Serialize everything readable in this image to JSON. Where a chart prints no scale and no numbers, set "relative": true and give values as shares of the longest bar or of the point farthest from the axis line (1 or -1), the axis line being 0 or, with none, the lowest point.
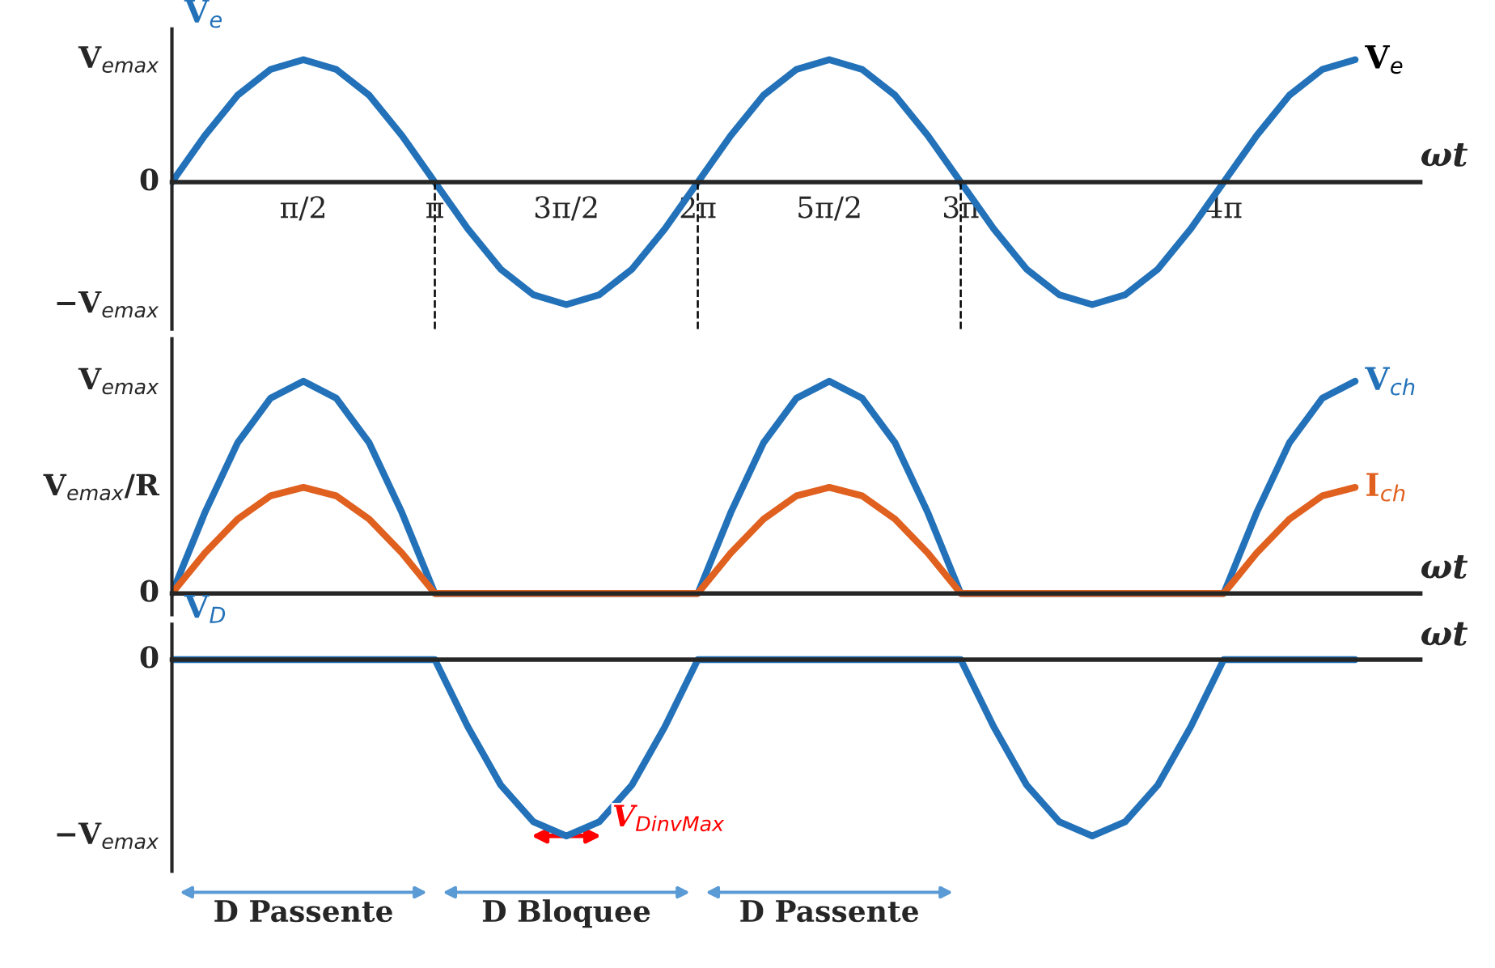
{
  "chart_data": [
    {
      "type": "line",
      "relative": true,
      "ylabel": "V$_{e}$",
      "xlabel": "ωt",
      "categories": [
        null,
        null,
        null,
        null,
        "π/2",
        null,
        null,
        null,
        "π",
        null,
        null,
        null,
        "3π/2",
        null,
        null,
        null,
        "2π",
        null,
        null,
        null,
        "5π/2",
        null,
        null,
        null,
        "3π",
        null,
        null,
        null,
        null,
        null,
        null,
        null,
        "4π",
        null,
        null,
        null,
        null
      ],
      "series": [
        {
          "name": "V$_{e}$",
          "color": "#2372b9",
          "values": [
            0,
            0.38,
            0.71,
            0.92,
            1,
            0.92,
            0.71,
            0.38,
            0,
            -0.38,
            -0.71,
            -0.92,
            -1,
            -0.92,
            -0.71,
            -0.38,
            0,
            0.38,
            0.71,
            0.92,
            1,
            0.92,
            0.71,
            0.38,
            0,
            -0.38,
            -0.71,
            -0.92,
            -1,
            -0.92,
            -0.71,
            -0.38,
            0,
            0.38,
            0.71,
            0.92,
            1
          ]
        }
      ],
      "annotations": [
        "V$_{emax}$",
        "0",
        "−V$_{emax}$"
      ],
      "ref_lines": [
        {
          "axis": "x",
          "value": "π",
          "color": "#000000",
          "line_style": "dashed"
        },
        {
          "axis": "x",
          "value": "2π",
          "color": "#000000",
          "line_style": "dashed"
        },
        {
          "axis": "x",
          "value": "3π",
          "color": "#000000",
          "line_style": "dashed"
        }
      ],
      "legend": false,
      "marker": "none",
      "line_style": "solid"
    },
    {
      "type": "line",
      "relative": true,
      "xlabel": "ωt",
      "categories": [
        null,
        null,
        null,
        null,
        null,
        null,
        null,
        null,
        null,
        null,
        null,
        null,
        null,
        null,
        null,
        null,
        null,
        null,
        null,
        null,
        null,
        null,
        null,
        null,
        null,
        null,
        null,
        null,
        null,
        null,
        null,
        null,
        null,
        null,
        null,
        null,
        null
      ],
      "series": [
        {
          "name": "V$_{ch}$",
          "color": "#2372b9",
          "values": [
            0,
            0.38,
            0.71,
            0.92,
            1,
            0.92,
            0.71,
            0.38,
            0,
            0,
            0,
            0,
            0,
            0,
            0,
            0,
            0,
            0.38,
            0.71,
            0.92,
            1,
            0.92,
            0.71,
            0.38,
            0,
            0,
            0,
            0,
            0,
            0,
            0,
            0,
            0,
            0.38,
            0.71,
            0.92,
            1
          ]
        },
        {
          "name": "I$_{ch}$",
          "color": "#e0601f",
          "values": [
            0,
            0.19,
            0.35,
            0.46,
            0.5,
            0.46,
            0.35,
            0.19,
            0,
            0,
            0,
            0,
            0,
            0,
            0,
            0,
            0,
            0.19,
            0.35,
            0.46,
            0.5,
            0.46,
            0.35,
            0.19,
            0,
            0,
            0,
            0,
            0,
            0,
            0,
            0,
            0,
            0.19,
            0.35,
            0.46,
            0.5
          ]
        }
      ],
      "annotations": [
        "V$_{emax}$",
        "V$_{emax}$/R",
        "0"
      ],
      "legend": false,
      "marker": "none",
      "line_style": "solid"
    },
    {
      "type": "line",
      "relative": true,
      "ylabel": "V$_{D}$",
      "xlabel": "ωt",
      "categories": [
        null,
        null,
        null,
        null,
        null,
        null,
        null,
        null,
        null,
        null,
        null,
        null,
        null,
        null,
        null,
        null,
        null,
        null,
        null,
        null,
        null,
        null,
        null,
        null,
        null,
        null,
        null,
        null,
        null,
        null,
        null,
        null,
        null,
        null,
        null,
        null,
        null
      ],
      "series": [
        {
          "color": "#2372b9",
          "values": [
            0,
            0,
            0,
            0,
            0,
            0,
            0,
            0,
            0,
            -0.38,
            -0.71,
            -0.92,
            -1,
            -0.92,
            -0.71,
            -0.38,
            0,
            0,
            0,
            0,
            0,
            0,
            0,
            0,
            0,
            -0.38,
            -0.71,
            -0.92,
            -1,
            -0.92,
            -0.71,
            -0.38,
            0,
            0,
            0,
            0,
            0
          ]
        }
      ],
      "annotations": [
        "0",
        "−V$_{emax}$",
        "V$_{DinvMax}$",
        "D Passente",
        "D Bloquee",
        "D Passente"
      ],
      "legend": false,
      "marker": "none",
      "line_style": "solid"
    }
  ]
}
